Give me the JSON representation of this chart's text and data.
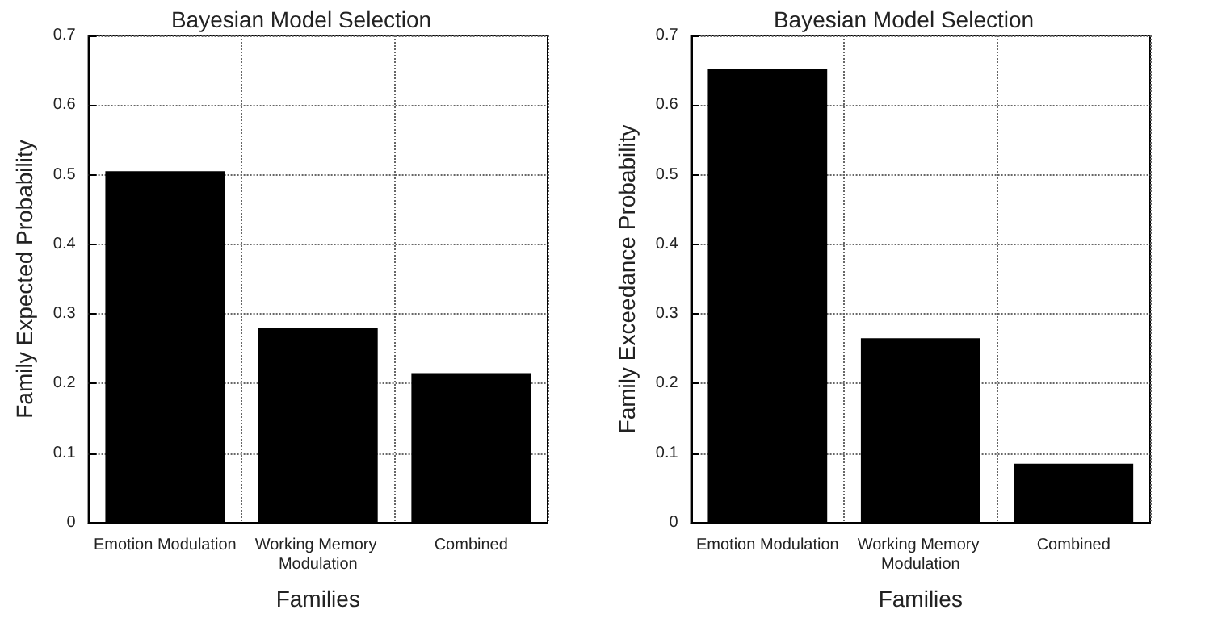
{
  "chart_data": [
    {
      "type": "bar",
      "title": "Bayesian Model Selection",
      "xlabel": "Families",
      "ylabel": "Family Expected Probability",
      "categories": [
        "Emotion Modulation",
        "Working Memory Modulation",
        "Combined"
      ],
      "values": [
        0.505,
        0.28,
        0.215
      ],
      "color": "#000000",
      "ylim": [
        0,
        0.7
      ],
      "yticks": [
        0,
        0.1,
        0.2,
        0.3,
        0.4,
        0.5,
        0.6,
        0.7
      ],
      "grid": true
    },
    {
      "type": "bar",
      "title": "Bayesian Model Selection",
      "xlabel": "Families",
      "ylabel": "Family Exceedance Probability",
      "categories": [
        "Emotion Modulation",
        "Working Memory Modulation",
        "Combined"
      ],
      "values": [
        0.652,
        0.265,
        0.085
      ],
      "color": "#000000",
      "ylim": [
        0,
        0.7
      ],
      "yticks": [
        0,
        0.1,
        0.2,
        0.3,
        0.4,
        0.5,
        0.6,
        0.7
      ],
      "grid": true
    }
  ]
}
